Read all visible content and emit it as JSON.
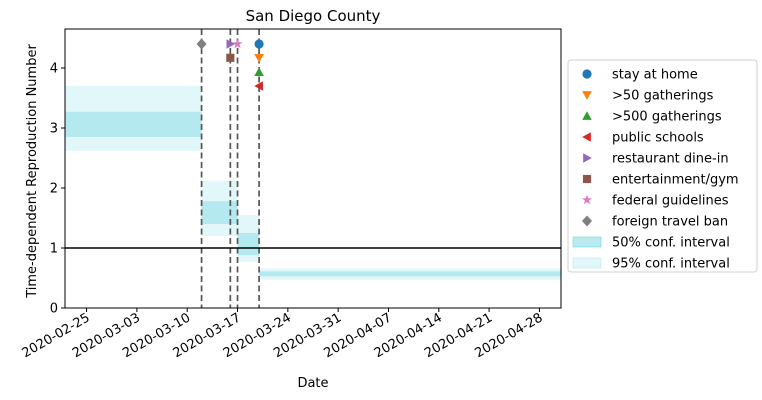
{
  "chart_data": {
    "type": "line",
    "title": "San Diego County",
    "xlabel": "Date",
    "ylabel": "Time-dependent Reproduction Number",
    "x_type": "date",
    "xlim": [
      "2020-02-22",
      "2020-05-01"
    ],
    "ylim": [
      0,
      4.65
    ],
    "x_ticks": [
      "2020-02-25",
      "2020-03-03",
      "2020-03-10",
      "2020-03-17",
      "2020-03-24",
      "2020-03-31",
      "2020-04-07",
      "2020-04-14",
      "2020-04-21",
      "2020-04-28"
    ],
    "y_ticks": [
      0,
      1,
      2,
      3,
      4
    ],
    "reference_line": 1,
    "grid": false,
    "legend_placement": "right, outside",
    "band_color": "#17becf",
    "intervals": [
      {
        "start": "2020-02-22",
        "end": "2020-03-12",
        "ci50": [
          2.85,
          3.27
        ],
        "ci95": [
          2.62,
          3.7
        ]
      },
      {
        "start": "2020-03-12",
        "end": "2020-03-17",
        "ci50": [
          1.4,
          1.78
        ],
        "ci95": [
          1.2,
          2.12
        ]
      },
      {
        "start": "2020-03-17",
        "end": "2020-03-20",
        "ci50": [
          0.88,
          1.25
        ],
        "ci95": [
          0.77,
          1.55
        ]
      },
      {
        "start": "2020-03-20",
        "end": "2020-05-01",
        "ci50": [
          0.53,
          0.61
        ],
        "ci95": [
          0.47,
          0.66
        ]
      }
    ],
    "events": [
      {
        "name": "stay at home",
        "date": "2020-03-20",
        "y": 4.4,
        "marker": "circle",
        "color": "#1f77b4"
      },
      {
        "name": ">50 gatherings",
        "date": "2020-03-20",
        "y": 4.17,
        "marker": "triangle-down",
        "color": "#ff7f0e"
      },
      {
        "name": ">500 gatherings",
        "date": "2020-03-20",
        "y": 3.93,
        "marker": "triangle-up",
        "color": "#2ca02c"
      },
      {
        "name": "public schools",
        "date": "2020-03-20",
        "y": 3.7,
        "marker": "triangle-left",
        "color": "#d62728"
      },
      {
        "name": "restaurant dine-in",
        "date": "2020-03-16",
        "y": 4.4,
        "marker": "triangle-right",
        "color": "#9467bd"
      },
      {
        "name": "entertainment/gym",
        "date": "2020-03-16",
        "y": 4.17,
        "marker": "square",
        "color": "#8c564b"
      },
      {
        "name": "federal guidelines",
        "date": "2020-03-17",
        "y": 4.4,
        "marker": "star",
        "color": "#e377c2"
      },
      {
        "name": "foreign travel ban",
        "date": "2020-03-12",
        "y": 4.4,
        "marker": "diamond",
        "color": "#7f7f7f"
      }
    ],
    "event_lines": [
      "2020-03-12",
      "2020-03-16",
      "2020-03-17",
      "2020-03-20"
    ],
    "legend": [
      {
        "label": "stay at home",
        "marker": "circle",
        "color": "#1f77b4"
      },
      {
        "label": ">50 gatherings",
        "marker": "triangle-down",
        "color": "#ff7f0e"
      },
      {
        "label": ">500 gatherings",
        "marker": "triangle-up",
        "color": "#2ca02c"
      },
      {
        "label": "public schools",
        "marker": "triangle-left",
        "color": "#d62728"
      },
      {
        "label": "restaurant dine-in",
        "marker": "triangle-right",
        "color": "#9467bd"
      },
      {
        "label": "entertainment/gym",
        "marker": "square",
        "color": "#8c564b"
      },
      {
        "label": "federal guidelines",
        "marker": "star",
        "color": "#e377c2"
      },
      {
        "label": "foreign travel ban",
        "marker": "diamond",
        "color": "#7f7f7f"
      },
      {
        "label": "50% conf. interval",
        "marker": "patch50",
        "color": "#17becf"
      },
      {
        "label": "95% conf. interval",
        "marker": "patch95",
        "color": "#17becf"
      }
    ]
  }
}
